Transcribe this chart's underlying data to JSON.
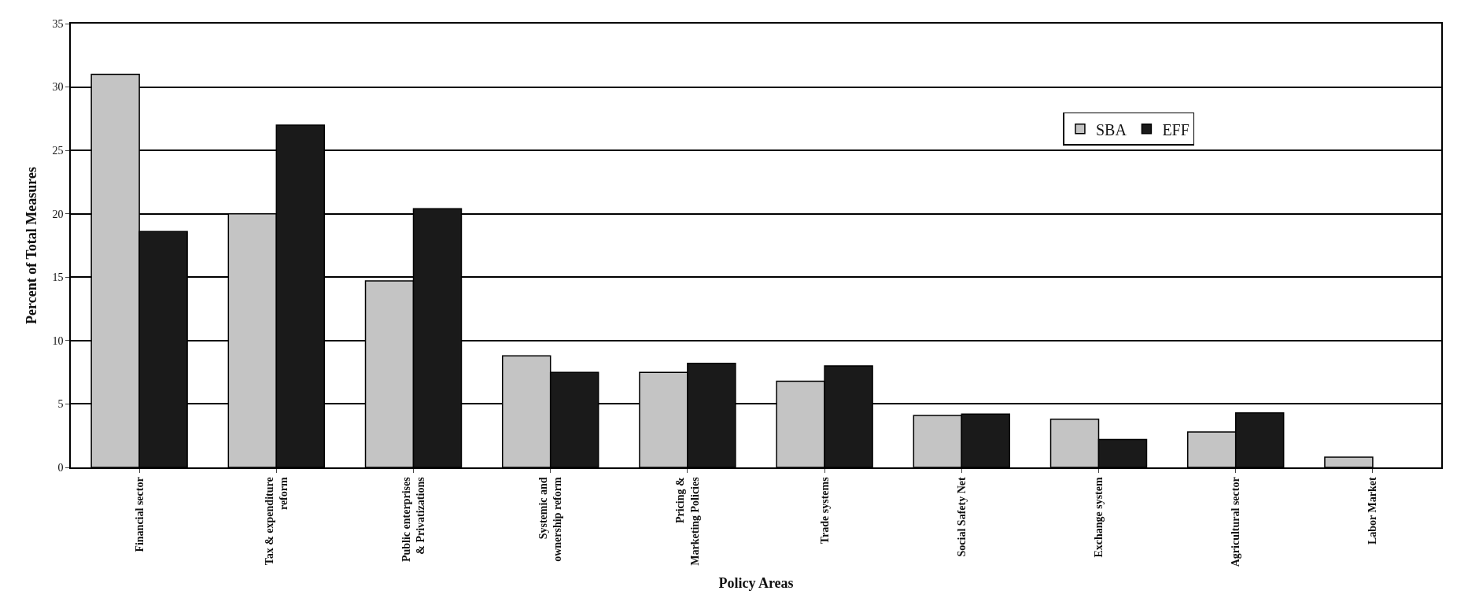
{
  "chart_data": {
    "type": "bar",
    "xlabel": "Policy Areas",
    "ylabel": "Percent of Total Measures",
    "categories": [
      "Financial sector",
      "Tax & expenditure\nreform",
      "Public enterprises\n& Privatizations",
      "Systemic and\nownership reform",
      "Pricing &\nMarketing Policies",
      "Trade systems",
      "Social Safety Net",
      "Exchange system",
      "Agricultural sector",
      "Labor Market"
    ],
    "series": [
      {
        "name": "SBA",
        "color": "#c4c4c4",
        "values": [
          31,
          20,
          14.7,
          8.8,
          7.5,
          6.8,
          4.1,
          3.8,
          2.8,
          0.8
        ]
      },
      {
        "name": "EFF",
        "color": "#1a1a1a",
        "values": [
          18.6,
          27,
          20.4,
          7.5,
          8.2,
          8.0,
          4.2,
          2.2,
          4.3,
          null
        ]
      }
    ],
    "ylim": [
      0,
      35
    ],
    "yticks": [
      0,
      5,
      10,
      15,
      20,
      25,
      30,
      35
    ],
    "grid": "y",
    "legend": "top right"
  }
}
